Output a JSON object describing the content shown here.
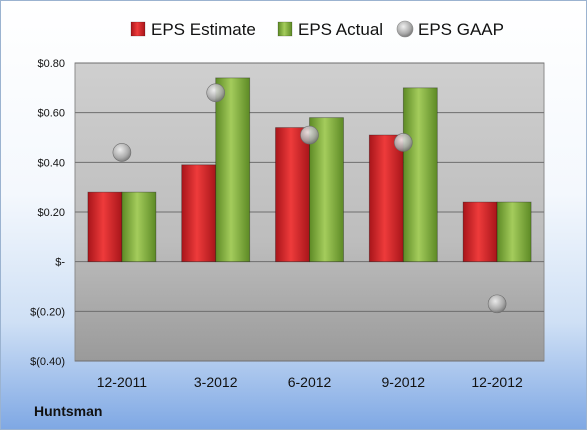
{
  "company": "Huntsman",
  "chart_data": {
    "type": "bar",
    "categories": [
      "12-2011",
      "3-2012",
      "6-2012",
      "9-2012",
      "12-2012"
    ],
    "series": [
      {
        "name": "EPS Estimate",
        "kind": "bar",
        "color": "#cc1f25",
        "values": [
          0.28,
          0.39,
          0.54,
          0.51,
          0.24
        ]
      },
      {
        "name": "EPS Actual",
        "kind": "bar",
        "color": "#7aa33a",
        "values": [
          0.28,
          0.74,
          0.58,
          0.7,
          0.24
        ]
      },
      {
        "name": "EPS GAAP",
        "kind": "scatter",
        "color": "#a9a9a9",
        "values": [
          0.44,
          0.68,
          0.51,
          0.48,
          -0.17
        ]
      }
    ],
    "ylim": [
      -0.4,
      0.8
    ],
    "yticks": [
      0.8,
      0.6,
      0.4,
      0.2,
      0.0,
      -0.2,
      -0.4
    ],
    "ytick_labels": [
      "$0.80",
      "$0.60",
      "$0.40",
      "$0.20",
      "$-",
      "$(0.20)",
      "$(0.40)"
    ],
    "grid": true,
    "legend_position": "top"
  }
}
